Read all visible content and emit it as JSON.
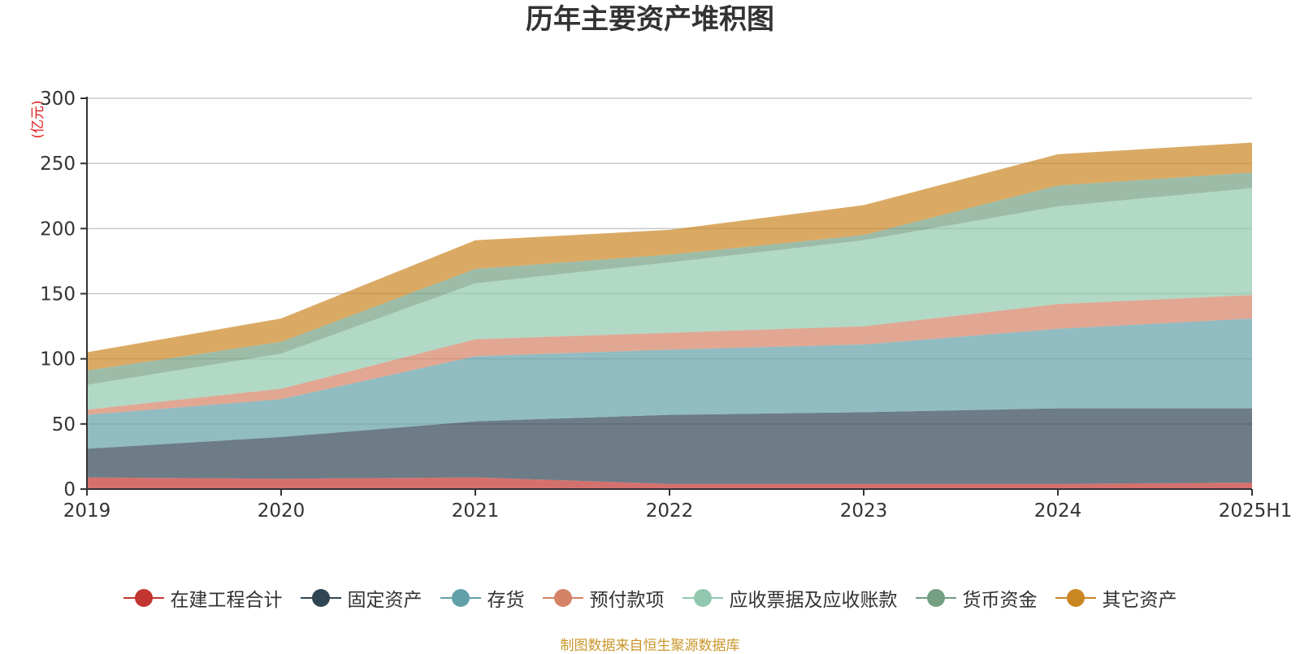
{
  "chart_data": {
    "type": "area",
    "title": "历年主要资产堆积图",
    "ylabel": "(亿元)",
    "xlabel": "",
    "x": [
      "2019",
      "2020",
      "2021",
      "2022",
      "2023",
      "2024",
      "2025H1"
    ],
    "ylim": [
      0,
      300
    ],
    "yticks": [
      "0",
      "50",
      "100",
      "150",
      "200",
      "250",
      "300"
    ],
    "stacked": true,
    "grid": true,
    "legend_position": "bottom",
    "series": [
      {
        "name": "在建工程合计",
        "color": "#c23531",
        "values": [
          9,
          8,
          9,
          4,
          4,
          4,
          5
        ]
      },
      {
        "name": "固定资产",
        "color": "#2f4554",
        "values": [
          22,
          32,
          43,
          53,
          55,
          58,
          57
        ]
      },
      {
        "name": "存货",
        "color": "#61a0a8",
        "values": [
          26,
          29,
          50,
          50,
          52,
          61,
          69
        ]
      },
      {
        "name": "预付款项",
        "color": "#d48265",
        "values": [
          4,
          8,
          13,
          13,
          14,
          19,
          18
        ]
      },
      {
        "name": "应收票据及应收账款",
        "color": "#91c7ae",
        "values": [
          19,
          27,
          43,
          54,
          66,
          75,
          82
        ]
      },
      {
        "name": "货币资金",
        "color": "#749f83",
        "values": [
          11,
          9,
          11,
          6,
          4,
          16,
          12
        ]
      },
      {
        "name": "其它资产",
        "color": "#ca8622",
        "values": [
          14,
          18,
          22,
          19,
          23,
          24,
          23
        ]
      }
    ]
  },
  "footer": {
    "source": "制图数据来自恒生聚源数据库"
  }
}
